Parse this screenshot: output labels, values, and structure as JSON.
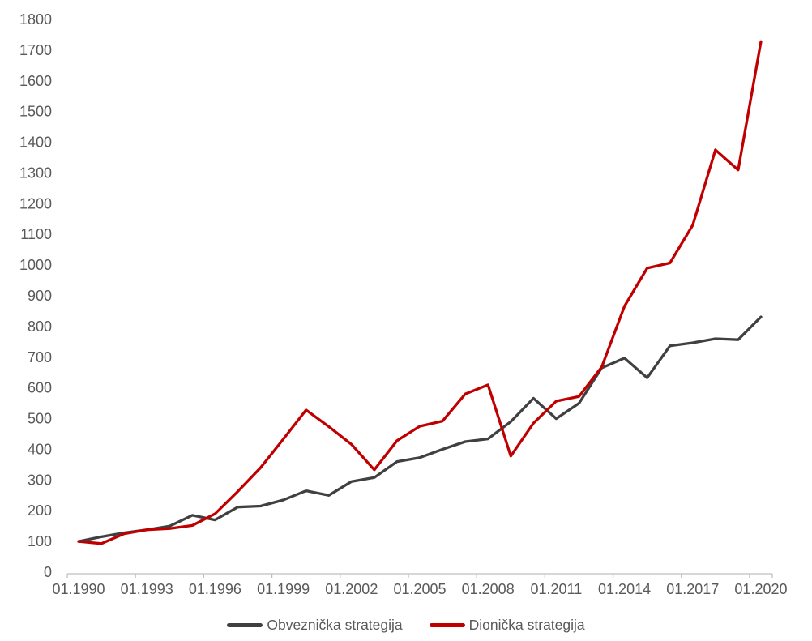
{
  "chart_data": {
    "type": "line",
    "title": "",
    "x": [
      1990,
      1991,
      1992,
      1993,
      1994,
      1995,
      1996,
      1997,
      1998,
      1999,
      2000,
      2001,
      2002,
      2003,
      2004,
      2005,
      2006,
      2007,
      2008,
      2009,
      2010,
      2011,
      2012,
      2013,
      2014,
      2015,
      2016,
      2017,
      2018,
      2019,
      2020
    ],
    "x_tick_labels": [
      "01.1990",
      "01.1993",
      "01.1996",
      "01.1999",
      "01.2002",
      "01.2005",
      "01.2008",
      "01.2011",
      "01.2014",
      "01.2017",
      "01.2020"
    ],
    "ylim": [
      0,
      1800
    ],
    "ytick_step": 100,
    "grid": false,
    "legend_position": "bottom",
    "series": [
      {
        "name": "Obveznička strategija",
        "color": "#404040",
        "values": [
          100,
          115,
          128,
          138,
          150,
          185,
          170,
          212,
          215,
          235,
          265,
          250,
          295,
          308,
          360,
          373,
          400,
          425,
          434,
          490,
          566,
          500,
          550,
          665,
          697,
          633,
          737,
          747,
          760,
          757,
          831
        ]
      },
      {
        "name": "Dionička strategija",
        "color": "#C00000",
        "values": [
          100,
          93,
          125,
          138,
          142,
          152,
          190,
          263,
          340,
          433,
          528,
          474,
          416,
          333,
          428,
          475,
          492,
          580,
          610,
          378,
          485,
          557,
          572,
          668,
          866,
          990,
          1007,
          1130,
          1375,
          1310,
          1728
        ]
      }
    ]
  },
  "colors": {
    "axis_line": "#BFBFBF",
    "tick_label": "#595959",
    "background": "#FFFFFF"
  }
}
